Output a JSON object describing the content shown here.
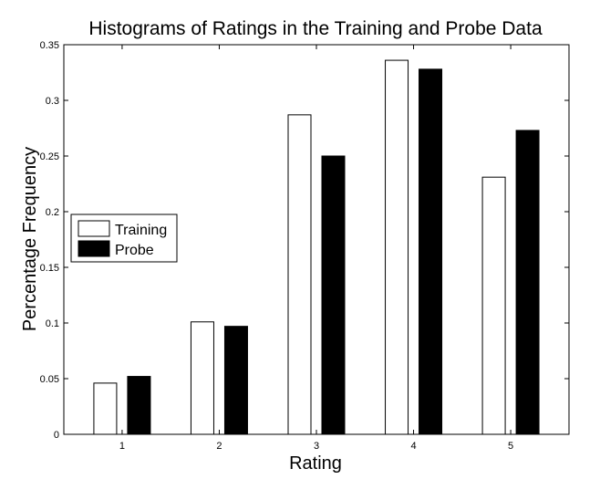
{
  "chart_data": {
    "type": "bar",
    "title": "Histograms of Ratings in the Training and Probe Data",
    "xlabel": "Rating",
    "ylabel": "Percentage Frequency",
    "categories": [
      "1",
      "2",
      "3",
      "4",
      "5"
    ],
    "series": [
      {
        "name": "Training",
        "values": [
          0.046,
          0.101,
          0.287,
          0.336,
          0.231
        ],
        "color": "#ffffff"
      },
      {
        "name": "Probe",
        "values": [
          0.052,
          0.097,
          0.25,
          0.328,
          0.273
        ],
        "color": "#000000"
      }
    ],
    "ylim": [
      0,
      0.35
    ],
    "yticks": [
      "0",
      "0.05",
      "0.1",
      "0.15",
      "0.2",
      "0.25",
      "0.3",
      "0.35"
    ],
    "grid": false,
    "legend_position": "middle-left"
  }
}
